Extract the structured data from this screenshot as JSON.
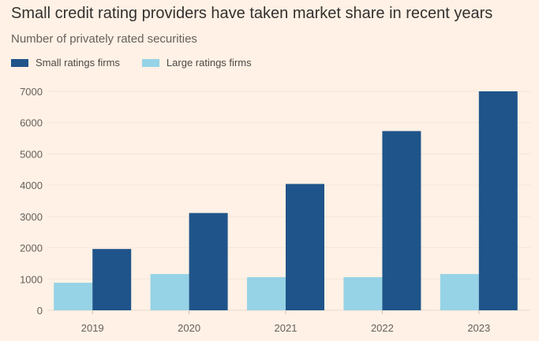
{
  "chart_data": {
    "type": "bar",
    "title": "Small credit rating providers have taken market share in recent years",
    "subtitle": "Number of privately rated securities",
    "xlabel": "",
    "ylabel": "",
    "categories": [
      "2019",
      "2020",
      "2021",
      "2022",
      "2023"
    ],
    "series": [
      {
        "name": "Large ratings firms",
        "color": "#96d3e6",
        "values": [
          880,
          1160,
          1060,
          1060,
          1160
        ]
      },
      {
        "name": "Small ratings firms",
        "color": "#1f548a",
        "values": [
          1960,
          3110,
          4040,
          5730,
          7000
        ]
      }
    ],
    "ylim": [
      0,
      7000
    ],
    "yticks": [
      "0",
      "1000",
      "2000",
      "3000",
      "4000",
      "5000",
      "6000",
      "7000"
    ],
    "grid": true,
    "legend_placement": "top-left"
  }
}
